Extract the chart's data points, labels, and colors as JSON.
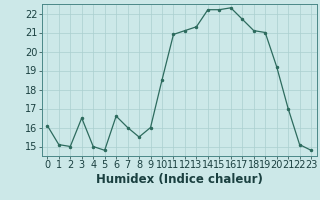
{
  "x": [
    0,
    1,
    2,
    3,
    4,
    5,
    6,
    7,
    8,
    9,
    10,
    11,
    12,
    13,
    14,
    15,
    16,
    17,
    18,
    19,
    20,
    21,
    22,
    23
  ],
  "y": [
    16.1,
    15.1,
    15.0,
    16.5,
    15.0,
    14.8,
    16.6,
    16.0,
    15.5,
    16.0,
    18.5,
    20.9,
    21.1,
    21.3,
    22.2,
    22.2,
    22.3,
    21.7,
    21.1,
    21.0,
    19.2,
    17.0,
    15.1,
    14.8
  ],
  "xlabel": "Humidex (Indice chaleur)",
  "ylim": [
    14.5,
    22.5
  ],
  "xlim": [
    -0.5,
    23.5
  ],
  "yticks": [
    15,
    16,
    17,
    18,
    19,
    20,
    21,
    22
  ],
  "xticks": [
    0,
    1,
    2,
    3,
    4,
    5,
    6,
    7,
    8,
    9,
    10,
    11,
    12,
    13,
    14,
    15,
    16,
    17,
    18,
    19,
    20,
    21,
    22,
    23
  ],
  "line_color": "#2d6b5e",
  "marker_color": "#2d6b5e",
  "bg_color": "#cce8e8",
  "grid_color": "#aacfcf",
  "tick_label_fontsize": 7,
  "xlabel_fontsize": 8.5
}
